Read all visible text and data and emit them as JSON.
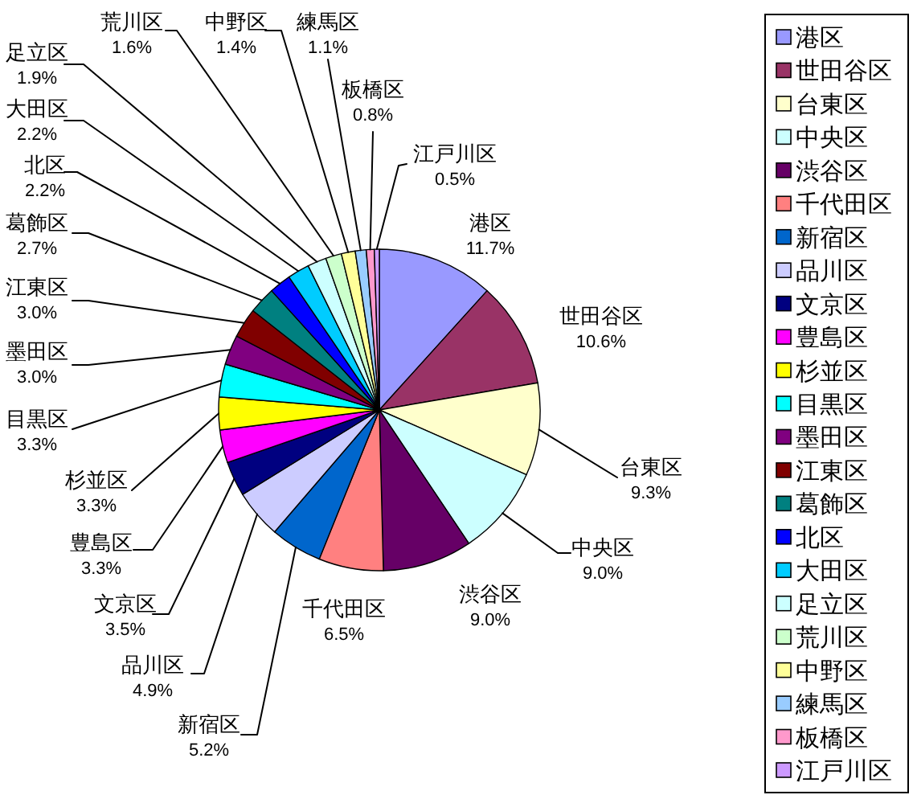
{
  "chart_data": {
    "type": "pie",
    "categories": [
      "港区",
      "世田谷区",
      "台東区",
      "中央区",
      "渋谷区",
      "千代田区",
      "新宿区",
      "品川区",
      "文京区",
      "豊島区",
      "杉並区",
      "目黒区",
      "墨田区",
      "江東区",
      "葛飾区",
      "北区",
      "大田区",
      "足立区",
      "荒川区",
      "中野区",
      "練馬区",
      "板橋区",
      "江戸川区"
    ],
    "values": [
      11.7,
      10.6,
      9.3,
      9.0,
      9.0,
      6.5,
      5.2,
      4.9,
      3.5,
      3.3,
      3.3,
      3.3,
      3.0,
      3.0,
      2.7,
      2.2,
      2.2,
      1.9,
      1.6,
      1.4,
      1.1,
      0.8,
      0.5
    ],
    "colors": [
      "#9999ff",
      "#993366",
      "#ffffcc",
      "#ccffff",
      "#660066",
      "#ff8080",
      "#0066cc",
      "#ccccff",
      "#000080",
      "#ff00ff",
      "#ffff00",
      "#00ffff",
      "#800080",
      "#800000",
      "#008080",
      "#0000ff",
      "#00ccff",
      "#ccffff",
      "#ccffcc",
      "#ffff99",
      "#99ccff",
      "#ff99cc",
      "#cc99ff"
    ],
    "value_labels": [
      "11.7%",
      "10.6%",
      "9.3%",
      "9.0%",
      "9.0%",
      "6.5%",
      "5.2%",
      "4.9%",
      "3.5%",
      "3.3%",
      "3.3%",
      "3.3%",
      "3.0%",
      "3.0%",
      "2.7%",
      "2.2%",
      "2.2%",
      "1.9%",
      "1.6%",
      "1.4%",
      "1.1%",
      "0.8%",
      "0.5%"
    ],
    "legend": "right"
  }
}
